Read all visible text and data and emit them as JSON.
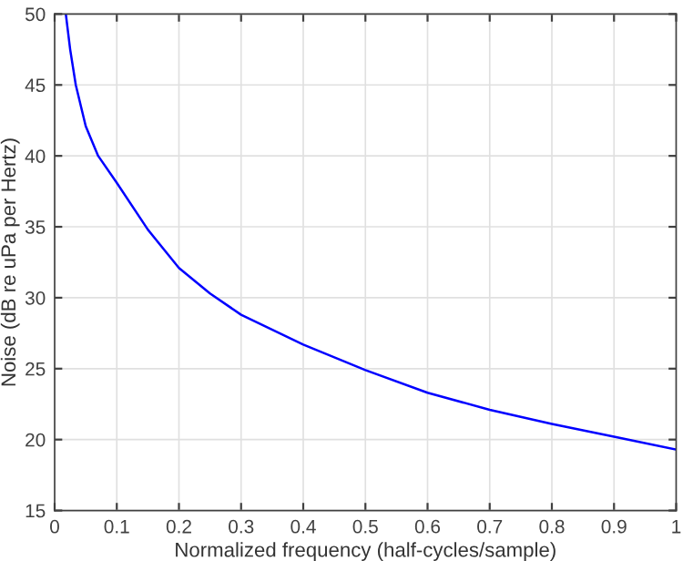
{
  "chart_data": {
    "type": "line",
    "xlabel": "Normalized frequency (half-cycles/sample)",
    "ylabel": "Noise (dB re uPa per Hertz)",
    "series": [
      {
        "color": "#0000ff",
        "x": [
          0.018,
          0.025,
          0.034,
          0.05,
          0.07,
          0.1,
          0.15,
          0.2,
          0.25,
          0.3,
          0.4,
          0.5,
          0.6,
          0.7,
          0.8,
          0.9,
          1.0
        ],
        "values": [
          50,
          47.5,
          45,
          42.1,
          40,
          38.1,
          34.8,
          32.1,
          30.3,
          28.8,
          26.7,
          24.9,
          23.3,
          22.1,
          21.1,
          20.2,
          19.3
        ]
      }
    ],
    "xlim": [
      0,
      1
    ],
    "xticks": [
      0,
      0.1,
      0.2,
      0.3,
      0.4,
      0.5,
      0.6,
      0.7,
      0.8,
      0.9,
      1
    ],
    "ylim": [
      15,
      50
    ],
    "yticks": [
      15,
      20,
      25,
      30,
      35,
      40,
      45,
      50
    ],
    "grid": true,
    "legend": false,
    "marker": "none",
    "line_style": "solid"
  }
}
